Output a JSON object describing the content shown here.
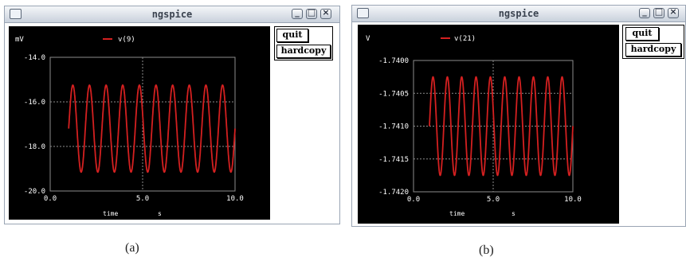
{
  "window_a": {
    "title": "ngspice",
    "quit_label": "quit",
    "hardcopy_label": "hardcopy",
    "ylabel": "mV",
    "xlabel": "time",
    "xunit": "s",
    "legend": "v(9)",
    "caption": "(a)"
  },
  "window_b": {
    "title": "ngspice",
    "quit_label": "quit",
    "hardcopy_label": "hardcopy",
    "ylabel": "V",
    "xlabel": "time",
    "xunit": "s",
    "legend": "v(21)",
    "caption": "(b)"
  },
  "chart_data": [
    {
      "type": "line",
      "series": [
        {
          "name": "v(9)",
          "color": "#d42020",
          "freq_cycles": 10,
          "mid": -17.2,
          "amplitude": 1.95,
          "x_start": 1.0,
          "x_end": 10.0
        }
      ],
      "xlim": [
        0,
        10
      ],
      "ylim": [
        -20,
        -14
      ],
      "x_ticks": [
        "0.0",
        "5.0",
        "10.0"
      ],
      "y_ticks": [
        "-14.0",
        "-16.0",
        "-18.0",
        "-20.0"
      ],
      "grid": true,
      "legend_position": "top"
    },
    {
      "type": "line",
      "series": [
        {
          "name": "v(21)",
          "color": "#d42020",
          "freq_cycles": 10,
          "mid": -1.741,
          "amplitude": 0.00075,
          "x_start": 1.0,
          "x_end": 10.0
        }
      ],
      "xlim": [
        0,
        10
      ],
      "ylim": [
        -1.742,
        -1.74
      ],
      "x_ticks": [
        "0.0",
        "5.0",
        "10.0"
      ],
      "y_ticks": [
        "-1.7400",
        "-1.7405",
        "-1.7410",
        "-1.7415",
        "-1.7420"
      ],
      "grid": true,
      "legend_position": "top"
    }
  ]
}
